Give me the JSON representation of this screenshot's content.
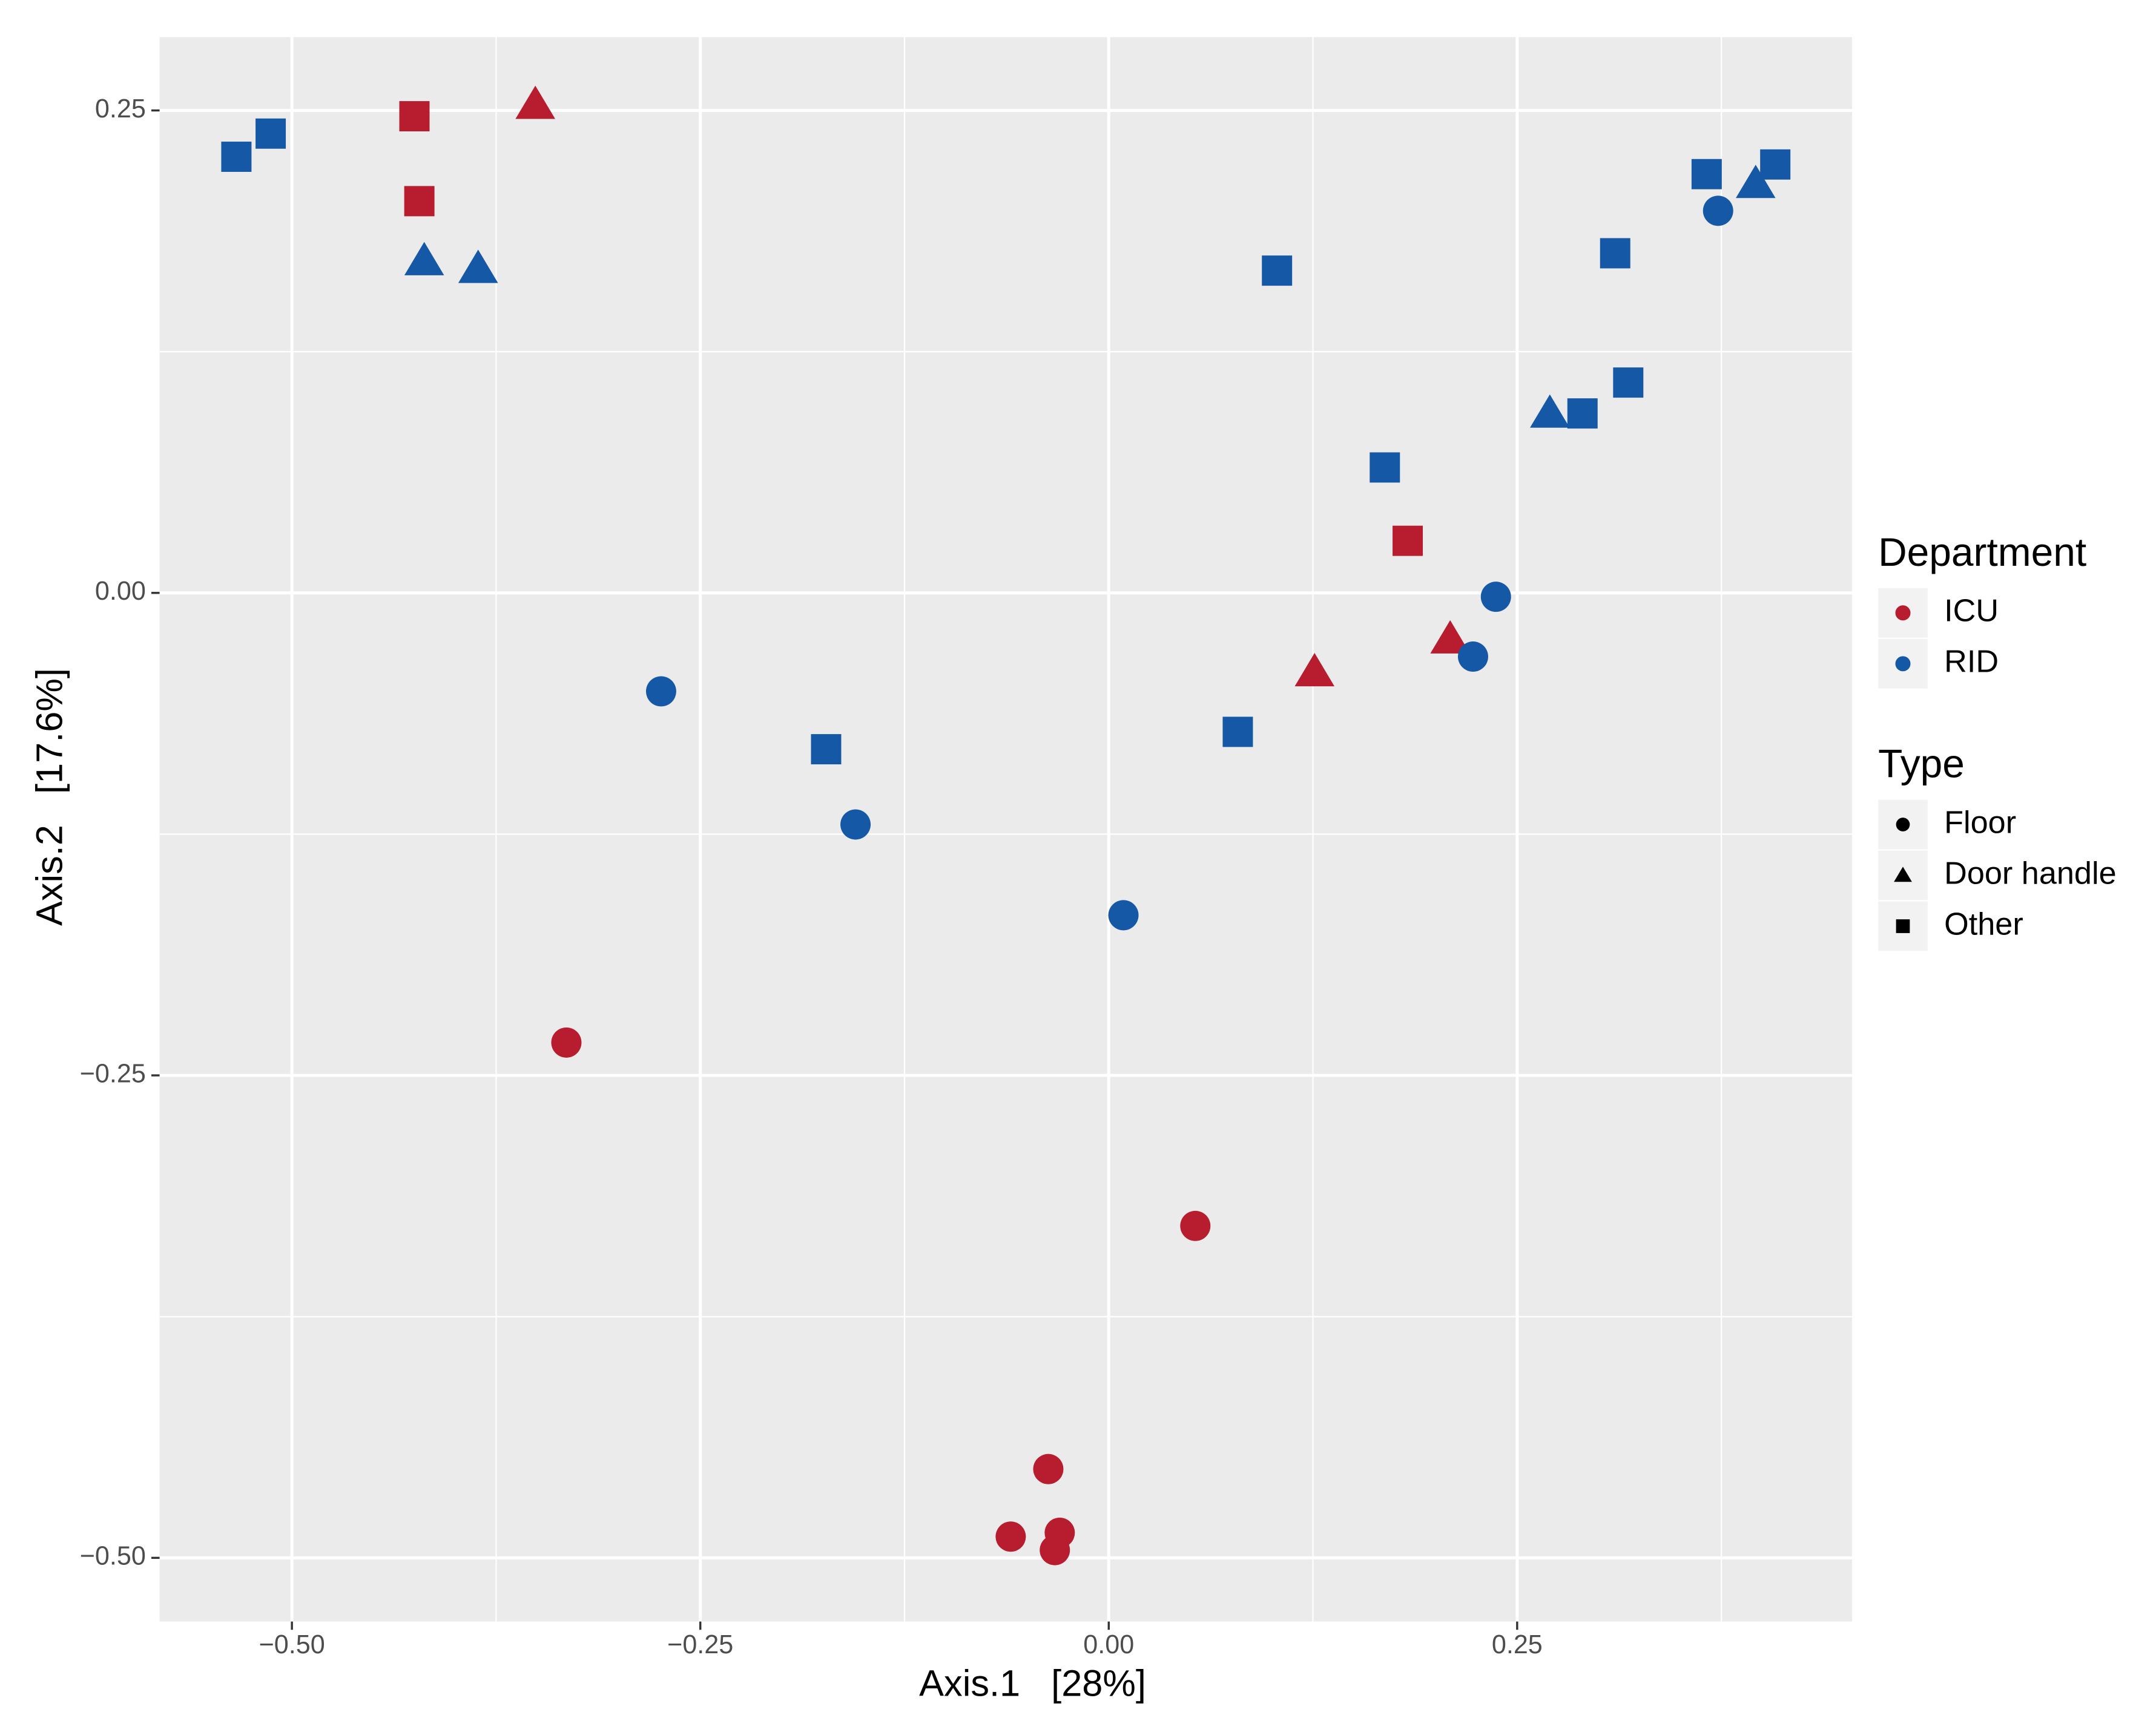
{
  "chart_data": {
    "type": "scatter",
    "xlabel": "Axis.1   [28%]",
    "ylabel": "Axis.2   [17.6%]",
    "xlim": [
      -0.581,
      0.455
    ],
    "ylim": [
      -0.533,
      0.288
    ],
    "xticks": [
      {
        "value": -0.5,
        "label": "−0.50"
      },
      {
        "value": -0.25,
        "label": "−0.25"
      },
      {
        "value": 0,
        "label": "0.00"
      },
      {
        "value": 0.25,
        "label": "0.25"
      }
    ],
    "yticks": [
      {
        "value": -0.5,
        "label": "−0.50"
      },
      {
        "value": -0.25,
        "label": "−0.25"
      },
      {
        "value": 0,
        "label": "0.00"
      },
      {
        "value": 0.25,
        "label": "0.25"
      }
    ],
    "x_minor_grid": [
      -0.375,
      -0.125,
      0.125,
      0.375
    ],
    "y_minor_grid": [
      -0.375,
      -0.125,
      0.125
    ],
    "grid": true,
    "color_legend": {
      "title": "Department",
      "entries": [
        {
          "label": "ICU",
          "color": "#b71c2f"
        },
        {
          "label": "RID",
          "color": "#1558a6"
        }
      ]
    },
    "shape_legend": {
      "title": "Type",
      "entries": [
        {
          "label": "Floor",
          "shape": "circle"
        },
        {
          "label": "Door handle",
          "shape": "triangle"
        },
        {
          "label": "Other",
          "shape": "square"
        }
      ]
    },
    "points": [
      {
        "x": -0.425,
        "y": 0.247,
        "department": "ICU",
        "type": "Other"
      },
      {
        "x": -0.422,
        "y": 0.203,
        "department": "ICU",
        "type": "Other"
      },
      {
        "x": 0.183,
        "y": 0.027,
        "department": "ICU",
        "type": "Other"
      },
      {
        "x": -0.351,
        "y": 0.253,
        "department": "ICU",
        "type": "Door handle"
      },
      {
        "x": 0.126,
        "y": -0.041,
        "department": "ICU",
        "type": "Door handle"
      },
      {
        "x": 0.209,
        "y": -0.024,
        "department": "ICU",
        "type": "Door handle"
      },
      {
        "x": -0.332,
        "y": -0.233,
        "department": "ICU",
        "type": "Floor"
      },
      {
        "x": 0.053,
        "y": -0.328,
        "department": "ICU",
        "type": "Floor"
      },
      {
        "x": -0.037,
        "y": -0.454,
        "department": "ICU",
        "type": "Floor"
      },
      {
        "x": -0.06,
        "y": -0.489,
        "department": "ICU",
        "type": "Floor"
      },
      {
        "x": -0.03,
        "y": -0.487,
        "department": "ICU",
        "type": "Floor"
      },
      {
        "x": -0.033,
        "y": -0.496,
        "department": "ICU",
        "type": "Floor"
      },
      {
        "x": -0.534,
        "y": 0.226,
        "department": "RID",
        "type": "Other"
      },
      {
        "x": -0.513,
        "y": 0.238,
        "department": "RID",
        "type": "Other"
      },
      {
        "x": 0.103,
        "y": 0.167,
        "department": "RID",
        "type": "Other"
      },
      {
        "x": 0.31,
        "y": 0.176,
        "department": "RID",
        "type": "Other"
      },
      {
        "x": 0.366,
        "y": 0.217,
        "department": "RID",
        "type": "Other"
      },
      {
        "x": 0.408,
        "y": 0.222,
        "department": "RID",
        "type": "Other"
      },
      {
        "x": 0.29,
        "y": 0.093,
        "department": "RID",
        "type": "Other"
      },
      {
        "x": 0.318,
        "y": 0.109,
        "department": "RID",
        "type": "Other"
      },
      {
        "x": 0.169,
        "y": 0.065,
        "department": "RID",
        "type": "Other"
      },
      {
        "x": -0.173,
        "y": -0.081,
        "department": "RID",
        "type": "Other"
      },
      {
        "x": 0.079,
        "y": -0.072,
        "department": "RID",
        "type": "Other"
      },
      {
        "x": -0.419,
        "y": 0.172,
        "department": "RID",
        "type": "Door handle"
      },
      {
        "x": -0.386,
        "y": 0.168,
        "department": "RID",
        "type": "Door handle"
      },
      {
        "x": 0.27,
        "y": 0.093,
        "department": "RID",
        "type": "Door handle"
      },
      {
        "x": 0.396,
        "y": 0.212,
        "department": "RID",
        "type": "Door handle"
      },
      {
        "x": 0.373,
        "y": 0.198,
        "department": "RID",
        "type": "Floor"
      },
      {
        "x": 0.237,
        "y": -0.002,
        "department": "RID",
        "type": "Floor"
      },
      {
        "x": 0.223,
        "y": -0.033,
        "department": "RID",
        "type": "Floor"
      },
      {
        "x": -0.274,
        "y": -0.051,
        "department": "RID",
        "type": "Floor"
      },
      {
        "x": -0.155,
        "y": -0.12,
        "department": "RID",
        "type": "Floor"
      },
      {
        "x": 0.009,
        "y": -0.167,
        "department": "RID",
        "type": "Floor"
      }
    ]
  }
}
